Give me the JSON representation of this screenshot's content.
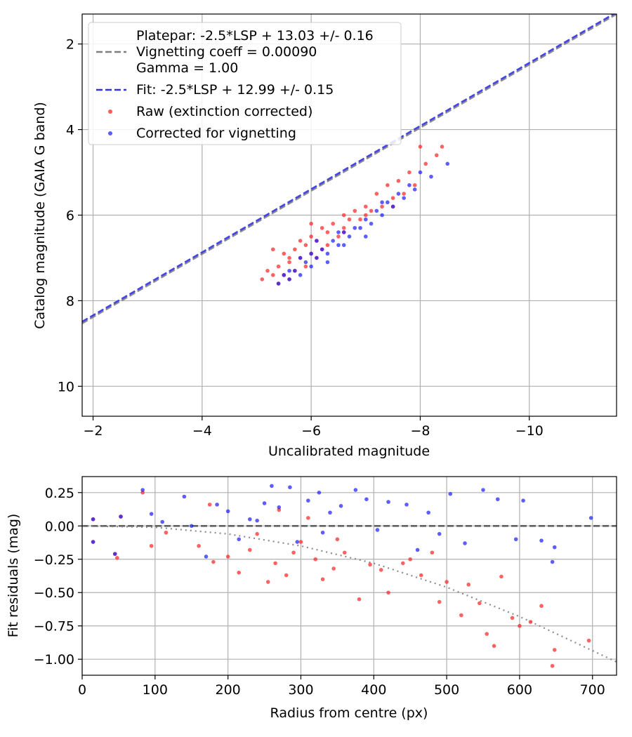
{
  "chart_data": [
    {
      "type": "scatter",
      "xlabel": "Uncalibrated magnitude",
      "ylabel": "Catalog magnitude (GAIA G band)",
      "xlim": [
        -1.8,
        -11.6
      ],
      "ylim": [
        10.7,
        1.3
      ],
      "x_inverted": true,
      "y_inverted": true,
      "xticks": [
        -2,
        -4,
        -6,
        -8,
        -10
      ],
      "xtick_labels": [
        "−2",
        "−4",
        "−6",
        "−8",
        "−10"
      ],
      "yticks": [
        2,
        4,
        6,
        8,
        10
      ],
      "ytick_labels": [
        "2",
        "4",
        "6",
        "8",
        "10"
      ],
      "grid": true,
      "legend_position": "upper-left",
      "legend": [
        {
          "kind": "dash",
          "color": "#7f7f7f",
          "lines": [
            "Platepar: -2.5*LSP + 13.03 +/- 0.16",
            "Vignetting coeff = 0.00090",
            "Gamma = 1.00"
          ]
        },
        {
          "kind": "dash",
          "color": "#3333e6",
          "lines": [
            "Fit: -2.5*LSP + 12.99 +/- 0.15"
          ]
        },
        {
          "kind": "dot",
          "color": "#ff3333",
          "lines": [
            "Raw (extinction corrected)"
          ]
        },
        {
          "kind": "dot",
          "color": "#3333ff",
          "lines": [
            "Corrected for vignetting"
          ]
        }
      ],
      "lines": [
        {
          "name": "Platepar",
          "x": [
            -1.8,
            -11.6
          ],
          "y": [
            8.53,
            1.3
          ],
          "color": "#7f7f7f",
          "style": "dashed"
        },
        {
          "name": "Fit",
          "x": [
            -1.8,
            -11.6
          ],
          "y": [
            8.49,
            1.26
          ],
          "color": "#3333e6",
          "style": "dashed"
        }
      ],
      "series": [
        {
          "name": "Raw (extinction corrected)",
          "color": "#ff2020",
          "points": [
            [
              -5.1,
              7.5
            ],
            [
              -5.2,
              7.3
            ],
            [
              -5.3,
              6.8
            ],
            [
              -5.3,
              7.4
            ],
            [
              -5.4,
              7.2
            ],
            [
              -5.4,
              7.6
            ],
            [
              -5.5,
              6.9
            ],
            [
              -5.5,
              7.4
            ],
            [
              -5.6,
              7.1
            ],
            [
              -5.6,
              7.5
            ],
            [
              -5.7,
              6.8
            ],
            [
              -5.7,
              7.3
            ],
            [
              -5.8,
              6.6
            ],
            [
              -5.8,
              7.0
            ],
            [
              -5.9,
              6.7
            ],
            [
              -5.9,
              7.2
            ],
            [
              -6.0,
              6.5
            ],
            [
              -6.0,
              6.9
            ],
            [
              -6.1,
              6.6
            ],
            [
              -6.1,
              7.0
            ],
            [
              -6.2,
              6.3
            ],
            [
              -6.2,
              6.8
            ],
            [
              -6.3,
              6.4
            ],
            [
              -6.3,
              6.7
            ],
            [
              -6.4,
              6.2
            ],
            [
              -6.5,
              6.5
            ],
            [
              -6.6,
              6.0
            ],
            [
              -6.6,
              6.3
            ],
            [
              -6.7,
              6.1
            ],
            [
              -6.8,
              5.9
            ],
            [
              -6.9,
              6.1
            ],
            [
              -7.0,
              5.8
            ],
            [
              -7.1,
              5.9
            ],
            [
              -7.2,
              5.5
            ],
            [
              -7.3,
              5.8
            ],
            [
              -7.4,
              5.3
            ],
            [
              -7.5,
              5.6
            ],
            [
              -7.6,
              5.2
            ],
            [
              -7.7,
              5.5
            ],
            [
              -7.8,
              5.0
            ],
            [
              -7.9,
              5.3
            ],
            [
              -8.0,
              4.4
            ],
            [
              -8.1,
              4.8
            ],
            [
              -8.3,
              4.6
            ],
            [
              -8.4,
              4.4
            ],
            [
              -6.6,
              6.4
            ],
            [
              -7.0,
              6.0
            ],
            [
              -7.5,
              5.8
            ],
            [
              -6.0,
              6.2
            ],
            [
              -5.6,
              7.0
            ]
          ]
        },
        {
          "name": "Corrected for vignetting",
          "color": "#1a1aff",
          "points": [
            [
              -5.4,
              7.6
            ],
            [
              -5.5,
              7.4
            ],
            [
              -5.6,
              7.5
            ],
            [
              -5.7,
              7.3
            ],
            [
              -5.8,
              7.4
            ],
            [
              -5.9,
              7.1
            ],
            [
              -6.0,
              7.2
            ],
            [
              -6.0,
              6.9
            ],
            [
              -6.1,
              7.0
            ],
            [
              -6.2,
              6.8
            ],
            [
              -6.3,
              6.9
            ],
            [
              -6.4,
              6.6
            ],
            [
              -6.5,
              6.7
            ],
            [
              -6.6,
              6.4
            ],
            [
              -6.7,
              6.5
            ],
            [
              -6.8,
              6.3
            ],
            [
              -6.9,
              6.3
            ],
            [
              -7.0,
              6.1
            ],
            [
              -7.1,
              6.2
            ],
            [
              -7.2,
              5.9
            ],
            [
              -7.3,
              6.0
            ],
            [
              -7.4,
              5.7
            ],
            [
              -7.5,
              5.8
            ],
            [
              -7.6,
              5.5
            ],
            [
              -7.7,
              5.6
            ],
            [
              -7.8,
              5.3
            ],
            [
              -7.9,
              5.4
            ],
            [
              -8.0,
              5.0
            ],
            [
              -8.2,
              5.1
            ],
            [
              -8.5,
              4.8
            ],
            [
              -6.3,
              7.1
            ],
            [
              -5.8,
              7.0
            ],
            [
              -6.1,
              6.6
            ],
            [
              -6.6,
              6.7
            ],
            [
              -7.0,
              6.5
            ],
            [
              -7.3,
              5.7
            ],
            [
              -5.6,
              7.3
            ],
            [
              -6.5,
              6.4
            ]
          ]
        }
      ]
    },
    {
      "type": "scatter",
      "xlabel": "Radius from centre (px)",
      "ylabel": "Fit residuals (mag)",
      "xlim": [
        0,
        733
      ],
      "ylim": [
        -1.12,
        0.37
      ],
      "xticks": [
        0,
        100,
        200,
        300,
        400,
        500,
        600,
        700
      ],
      "xtick_labels": [
        "0",
        "100",
        "200",
        "300",
        "400",
        "500",
        "600",
        "700"
      ],
      "yticks": [
        0.25,
        0.0,
        -0.25,
        -0.5,
        -0.75,
        -1.0
      ],
      "ytick_labels": [
        "0.25",
        "0.00",
        "−0.25",
        "−0.50",
        "−0.75",
        "−1.00"
      ],
      "grid": true,
      "lines": [
        {
          "name": "zero",
          "x": [
            0,
            733
          ],
          "y": [
            0,
            0
          ],
          "color": "#555555",
          "style": "dashed"
        },
        {
          "name": "vignetting model",
          "x": [
            0,
            100,
            200,
            300,
            400,
            500,
            600,
            733
          ],
          "y": [
            0,
            -0.01,
            -0.06,
            -0.15,
            -0.28,
            -0.46,
            -0.68,
            -1.02
          ],
          "color": "#7f7f7f",
          "style": "dotted"
        }
      ],
      "series": [
        {
          "name": "Raw (extinction corrected)",
          "color": "#ff2020",
          "points": [
            [
              15,
              0.05
            ],
            [
              15,
              -0.12
            ],
            [
              45,
              -0.21
            ],
            [
              48,
              -0.24
            ],
            [
              53,
              0.07
            ],
            [
              83,
              0.25
            ],
            [
              95,
              -0.15
            ],
            [
              115,
              -0.05
            ],
            [
              160,
              -0.15
            ],
            [
              175,
              0.16
            ],
            [
              180,
              -0.27
            ],
            [
              200,
              -0.23
            ],
            [
              215,
              -0.35
            ],
            [
              230,
              -0.18
            ],
            [
              240,
              -0.06
            ],
            [
              255,
              -0.42
            ],
            [
              265,
              -0.28
            ],
            [
              280,
              -0.37
            ],
            [
              290,
              -0.2
            ],
            [
              300,
              -0.12
            ],
            [
              320,
              -0.25
            ],
            [
              330,
              -0.4
            ],
            [
              345,
              -0.32
            ],
            [
              360,
              -0.2
            ],
            [
              380,
              -0.55
            ],
            [
              395,
              -0.29
            ],
            [
              410,
              -0.33
            ],
            [
              420,
              -0.5
            ],
            [
              440,
              -0.28
            ],
            [
              450,
              -0.25
            ],
            [
              465,
              -0.37
            ],
            [
              480,
              -0.2
            ],
            [
              490,
              -0.57
            ],
            [
              500,
              -0.42
            ],
            [
              520,
              -0.67
            ],
            [
              530,
              -0.44
            ],
            [
              545,
              -0.58
            ],
            [
              555,
              -0.81
            ],
            [
              565,
              -0.9
            ],
            [
              575,
              -0.38
            ],
            [
              590,
              -0.69
            ],
            [
              600,
              -0.75
            ],
            [
              615,
              -0.72
            ],
            [
              630,
              -0.6
            ],
            [
              645,
              -1.05
            ],
            [
              648,
              -0.93
            ],
            [
              695,
              -0.86
            ],
            [
              270,
              0.12
            ],
            [
              310,
              0.06
            ],
            [
              350,
              -0.1
            ]
          ]
        },
        {
          "name": "Corrected for vignetting",
          "color": "#1a1aff",
          "points": [
            [
              15,
              0.05
            ],
            [
              15,
              -0.12
            ],
            [
              45,
              -0.21
            ],
            [
              53,
              0.07
            ],
            [
              83,
              0.27
            ],
            [
              95,
              0.09
            ],
            [
              110,
              0.03
            ],
            [
              140,
              0.22
            ],
            [
              150,
              0.0
            ],
            [
              170,
              -0.23
            ],
            [
              185,
              0.16
            ],
            [
              200,
              0.11
            ],
            [
              215,
              -0.1
            ],
            [
              230,
              0.05
            ],
            [
              250,
              0.17
            ],
            [
              260,
              0.3
            ],
            [
              270,
              0.14
            ],
            [
              285,
              0.29
            ],
            [
              295,
              -0.12
            ],
            [
              310,
              0.19
            ],
            [
              325,
              0.25
            ],
            [
              340,
              0.1
            ],
            [
              355,
              0.15
            ],
            [
              375,
              0.27
            ],
            [
              390,
              0.2
            ],
            [
              405,
              -0.03
            ],
            [
              420,
              0.18
            ],
            [
              445,
              0.16
            ],
            [
              460,
              -0.18
            ],
            [
              475,
              0.1
            ],
            [
              490,
              -0.06
            ],
            [
              505,
              0.24
            ],
            [
              525,
              -0.13
            ],
            [
              550,
              0.27
            ],
            [
              570,
              0.2
            ],
            [
              595,
              -0.1
            ],
            [
              605,
              0.19
            ],
            [
              630,
              -0.11
            ],
            [
              645,
              -0.27
            ],
            [
              648,
              -0.16
            ],
            [
              698,
              0.06
            ],
            [
              240,
              0.04
            ],
            [
              330,
              -0.05
            ]
          ]
        }
      ]
    }
  ]
}
